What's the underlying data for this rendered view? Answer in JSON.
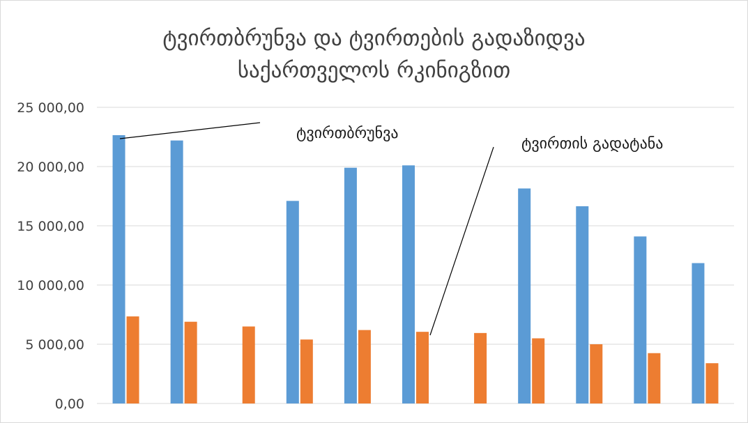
{
  "chart_data": {
    "type": "bar",
    "title_lines": [
      "ტვირთბრუნვა და ტვირთების გადაზიდვა",
      "საქართველოს რკინიგზით"
    ],
    "xlabel": "",
    "ylabel": "",
    "ylim": [
      0,
      25000
    ],
    "y_ticks": [
      "0,00",
      "5 000,00",
      "10 000,00",
      "15 000,00",
      "20 000,00",
      "25 000,00"
    ],
    "y_tick_values": [
      0,
      5000,
      10000,
      15000,
      20000,
      25000
    ],
    "categories": [
      "",
      "",
      "",
      "",
      "",
      "",
      "",
      "",
      "",
      "",
      ""
    ],
    "grid": true,
    "legend": "none",
    "series": [
      {
        "name": "ტვირთბრუნვა",
        "color": "#5b9bd5",
        "values": [
          22650,
          22200,
          null,
          17100,
          19900,
          20100,
          null,
          18150,
          16650,
          14100,
          11850
        ]
      },
      {
        "name": "ტვირთის გადატანა",
        "color": "#ed7d31",
        "values": [
          7350,
          6900,
          6500,
          5400,
          6200,
          6050,
          5950,
          5500,
          5000,
          4250,
          3400
        ]
      }
    ],
    "annotations": [
      {
        "text": "ტვირთბრუნვა",
        "series": 0,
        "point": 0
      },
      {
        "text": "ტვირთის გადატანა",
        "series": 1,
        "point": 5
      }
    ]
  }
}
